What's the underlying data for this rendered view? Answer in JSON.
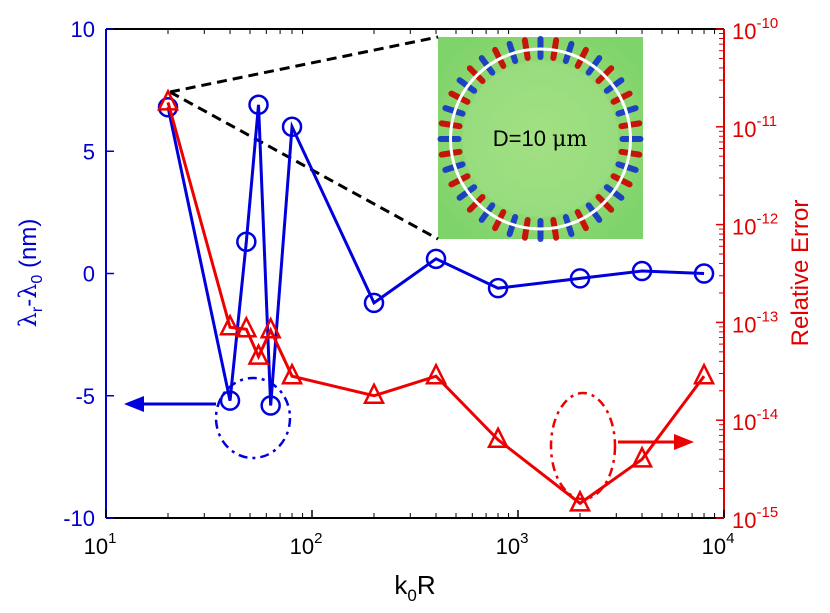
{
  "chart_data": {
    "type": "line",
    "xlabel": "k0R",
    "ylabel_left": "λr-λ0 (nm)",
    "ylabel_right": "Relative Error",
    "x_scale": "log",
    "xlim": [
      10,
      10000
    ],
    "ylim_left": [
      -10,
      10
    ],
    "ylim_right_log10": [
      -15,
      -10
    ],
    "x_ticks": [
      {
        "value": 10,
        "base": "10",
        "exp": "1"
      },
      {
        "value": 100,
        "base": "10",
        "exp": "2"
      },
      {
        "value": 1000,
        "base": "10",
        "exp": "3"
      },
      {
        "value": 10000,
        "base": "10",
        "exp": "4"
      }
    ],
    "y_left_ticks": [
      "10",
      "5",
      "0",
      "-5",
      "-10"
    ],
    "y_right_ticks": [
      {
        "base": "10",
        "exp": "-10"
      },
      {
        "base": "10",
        "exp": "-11"
      },
      {
        "base": "10",
        "exp": "-12"
      },
      {
        "base": "10",
        "exp": "-13"
      },
      {
        "base": "10",
        "exp": "-14"
      },
      {
        "base": "10",
        "exp": "-15"
      }
    ],
    "series": [
      {
        "name": "λr-λ0",
        "axis": "left",
        "color": "#0000dd",
        "marker": "circle",
        "x": [
          20,
          40,
          48,
          55,
          63,
          80,
          200,
          400,
          800,
          2000,
          4000,
          8000
        ],
        "y": [
          6.8,
          -5.2,
          1.3,
          6.9,
          -5.4,
          6.0,
          -1.2,
          0.6,
          -0.6,
          -0.2,
          0.1,
          0.0
        ]
      },
      {
        "name": "Relative Error",
        "axis": "right",
        "color": "#ee0000",
        "marker": "triangle",
        "x": [
          20,
          40,
          48,
          55,
          63,
          80,
          200,
          400,
          800,
          2000,
          4000,
          8000
        ],
        "y_log10": [
          -10.75,
          -13.05,
          -13.07,
          -13.35,
          -13.08,
          -13.55,
          -13.75,
          -13.55,
          -14.2,
          -14.85,
          -14.4,
          -13.55
        ]
      }
    ],
    "annotations": {
      "inset_label": "D=10 μm",
      "inset_label_main": "D=10 ",
      "inset_label_unit": "μm"
    }
  }
}
